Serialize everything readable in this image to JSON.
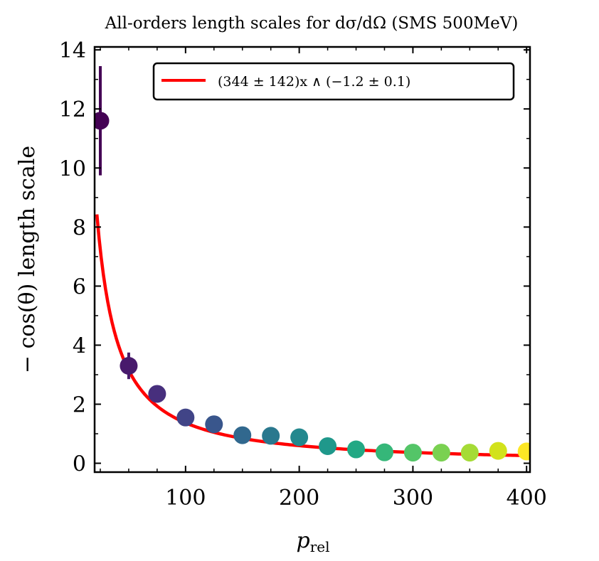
{
  "chart_data": {
    "type": "scatter",
    "title": "All-orders length scales for dσ/dΩ (SMS 500MeV)",
    "xlabel": "p",
    "xlabel_sub": "rel",
    "ylabel": "− cos(θ) length scale",
    "xlim": [
      20,
      403
    ],
    "ylim": [
      -0.3,
      14.1
    ],
    "xticks": [
      100,
      200,
      300,
      400
    ],
    "yticks": [
      0,
      2,
      4,
      6,
      8,
      10,
      12,
      14
    ],
    "grid": false,
    "legend_position": "top-right",
    "points": [
      {
        "x": 25,
        "y": 11.6,
        "err": 1.85,
        "color": "#440154"
      },
      {
        "x": 50,
        "y": 3.3,
        "err": 0.45,
        "color": "#481a6c"
      },
      {
        "x": 75,
        "y": 2.35,
        "err": 0.1,
        "color": "#472f7d"
      },
      {
        "x": 100,
        "y": 1.55,
        "err": 0.1,
        "color": "#414487"
      },
      {
        "x": 125,
        "y": 1.32,
        "err": 0.1,
        "color": "#39568c"
      },
      {
        "x": 150,
        "y": 0.95,
        "err": 0.05,
        "color": "#31688e"
      },
      {
        "x": 175,
        "y": 0.93,
        "err": 0.05,
        "color": "#2a788e"
      },
      {
        "x": 200,
        "y": 0.88,
        "err": 0.05,
        "color": "#23888e"
      },
      {
        "x": 225,
        "y": 0.58,
        "err": 0.05,
        "color": "#1f988b"
      },
      {
        "x": 250,
        "y": 0.47,
        "err": 0.05,
        "color": "#22a884"
      },
      {
        "x": 275,
        "y": 0.37,
        "err": 0.05,
        "color": "#35b779"
      },
      {
        "x": 300,
        "y": 0.36,
        "err": 0.05,
        "color": "#54c568"
      },
      {
        "x": 325,
        "y": 0.36,
        "err": 0.05,
        "color": "#7ad151"
      },
      {
        "x": 350,
        "y": 0.36,
        "err": 0.05,
        "color": "#a5db36"
      },
      {
        "x": 375,
        "y": 0.42,
        "err": 0.05,
        "color": "#d2e21b"
      },
      {
        "x": 400,
        "y": 0.4,
        "err": 0.05,
        "color": "#fde725"
      }
    ],
    "fit": {
      "label": "(344 ± 142)x ∧ (−1.2 ± 0.1)",
      "amplitude": 344,
      "exponent": -1.2,
      "x_range": [
        22,
        403
      ],
      "color": "#ff0000"
    }
  }
}
